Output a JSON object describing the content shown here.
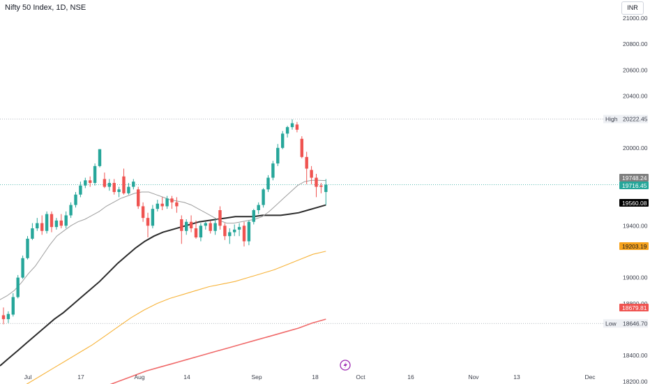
{
  "header": {
    "title": "Nifty 50 Index, 1D, NSE",
    "currency": "INR"
  },
  "colors": {
    "up": "#26a69a",
    "down": "#ef5350",
    "ma20": "#9e9e9e",
    "ma50": "#2b2b2b",
    "ma100": "#f7b339",
    "ma200": "#f06a6a",
    "marker": "#9c27b0"
  },
  "chart_data": {
    "type": "candlestick",
    "y_ticks": [
      "21000.00",
      "20800.00",
      "20600.00",
      "20400.00",
      "20000.00",
      "19400.00",
      "19000.00",
      "18800.00",
      "18400.00",
      "18200.00"
    ],
    "x_ticks": [
      "Jul",
      "17",
      "Aug",
      "14",
      "Sep",
      "18",
      "Oct",
      "16",
      "Nov",
      "13",
      "Dec"
    ],
    "ylim": [
      18180,
      21140
    ],
    "high": {
      "label": "High",
      "value": "20222.45"
    },
    "low": {
      "label": "Low",
      "value": "18646.70"
    },
    "price_tags": [
      {
        "value": "19748.24",
        "color": "#7f7f7f"
      },
      {
        "value": "19716.45",
        "color": "#26a69a"
      },
      {
        "value": "19560.08",
        "color": "#000000"
      },
      {
        "value": "19203.19",
        "color": "#f7a21b"
      },
      {
        "value": "18679.81",
        "color": "#ef5350"
      }
    ],
    "candles": [
      [
        18710,
        18770,
        18640,
        18680
      ],
      [
        18680,
        18740,
        18650,
        18720
      ],
      [
        18715,
        18880,
        18700,
        18850
      ],
      [
        18850,
        19020,
        18840,
        19000
      ],
      [
        19000,
        19170,
        18990,
        19150
      ],
      [
        19150,
        19320,
        19140,
        19300
      ],
      [
        19300,
        19420,
        19290,
        19380
      ],
      [
        19380,
        19460,
        19360,
        19420
      ],
      [
        19420,
        19480,
        19330,
        19360
      ],
      [
        19360,
        19510,
        19340,
        19490
      ],
      [
        19490,
        19510,
        19350,
        19390
      ],
      [
        19390,
        19460,
        19370,
        19440
      ],
      [
        19440,
        19490,
        19380,
        19400
      ],
      [
        19400,
        19510,
        19380,
        19480
      ],
      [
        19480,
        19580,
        19460,
        19560
      ],
      [
        19560,
        19660,
        19540,
        19640
      ],
      [
        19640,
        19740,
        19620,
        19710
      ],
      [
        19710,
        19770,
        19690,
        19750
      ],
      [
        19750,
        19780,
        19700,
        19730
      ],
      [
        19730,
        19880,
        19710,
        19860
      ],
      [
        19860,
        19990,
        19850,
        19990
      ],
      [
        19760,
        19810,
        19690,
        19700
      ],
      [
        19700,
        19760,
        19670,
        19730
      ],
      [
        19730,
        19760,
        19640,
        19660
      ],
      [
        19660,
        19700,
        19620,
        19680
      ],
      [
        19780,
        19840,
        19640,
        19650
      ],
      [
        19650,
        19730,
        19640,
        19700
      ],
      [
        19700,
        19760,
        19680,
        19740
      ],
      [
        19680,
        19700,
        19530,
        19550
      ],
      [
        19550,
        19580,
        19430,
        19460
      ],
      [
        19460,
        19500,
        19310,
        19400
      ],
      [
        19400,
        19560,
        19380,
        19530
      ],
      [
        19530,
        19600,
        19510,
        19570
      ],
      [
        19570,
        19620,
        19520,
        19550
      ],
      [
        19550,
        19630,
        19530,
        19610
      ],
      [
        19610,
        19630,
        19530,
        19580
      ],
      [
        19580,
        19620,
        19500,
        19550
      ],
      [
        19450,
        19480,
        19260,
        19360
      ],
      [
        19360,
        19450,
        19330,
        19430
      ],
      [
        19430,
        19480,
        19350,
        19380
      ],
      [
        19380,
        19440,
        19300,
        19310
      ],
      [
        19310,
        19420,
        19280,
        19400
      ],
      [
        19400,
        19430,
        19370,
        19420
      ],
      [
        19420,
        19440,
        19340,
        19360
      ],
      [
        19360,
        19450,
        19330,
        19420
      ],
      [
        19520,
        19550,
        19370,
        19400
      ],
      [
        19400,
        19420,
        19290,
        19320
      ],
      [
        19320,
        19380,
        19260,
        19350
      ],
      [
        19350,
        19410,
        19320,
        19370
      ],
      [
        19370,
        19420,
        19320,
        19390
      ],
      [
        19400,
        19430,
        19240,
        19280
      ],
      [
        19280,
        19440,
        19250,
        19430
      ],
      [
        19430,
        19530,
        19410,
        19520
      ],
      [
        19520,
        19580,
        19490,
        19560
      ],
      [
        19560,
        19690,
        19540,
        19680
      ],
      [
        19680,
        19790,
        19660,
        19770
      ],
      [
        19770,
        19900,
        19750,
        19880
      ],
      [
        19880,
        20030,
        19860,
        20000
      ],
      [
        20000,
        20130,
        19990,
        20110
      ],
      [
        20110,
        20170,
        20080,
        20160
      ],
      [
        20160,
        20220,
        20140,
        20190
      ],
      [
        20180,
        20200,
        20120,
        20140
      ],
      [
        20070,
        20090,
        19920,
        19930
      ],
      [
        19930,
        19970,
        19720,
        19840
      ],
      [
        19830,
        19860,
        19720,
        19770
      ],
      [
        19770,
        19800,
        19620,
        19700
      ],
      [
        19710,
        19730,
        19650,
        19700
      ],
      [
        19660,
        19760,
        19560,
        19716
      ]
    ],
    "ma20": [
      18830,
      18860,
      18900,
      18960,
      19030,
      19090,
      19170,
      19250,
      19320,
      19360,
      19400,
      19430,
      19450,
      19480,
      19510,
      19550,
      19580,
      19610,
      19630,
      19650,
      19660,
      19660,
      19640,
      19620,
      19600,
      19590,
      19580,
      19560,
      19530,
      19500,
      19470,
      19440,
      19420,
      19420,
      19430,
      19440,
      19450,
      19470,
      19510,
      19560,
      19610,
      19660,
      19710,
      19740,
      19750,
      19750,
      19748
    ],
    "ma50": [
      18320,
      18380,
      18440,
      18500,
      18560,
      18620,
      18680,
      18730,
      18790,
      18850,
      18910,
      18970,
      19040,
      19110,
      19170,
      19230,
      19280,
      19320,
      19350,
      19370,
      19390,
      19410,
      19430,
      19440,
      19450,
      19460,
      19470,
      19470,
      19470,
      19480,
      19480,
      19480,
      19490,
      19500,
      19520,
      19540,
      19560
    ],
    "ma100": [
      18120,
      18180,
      18240,
      18300,
      18360,
      18420,
      18480,
      18550,
      18620,
      18690,
      18750,
      18800,
      18840,
      18870,
      18900,
      18930,
      18950,
      18970,
      19000,
      19030,
      19060,
      19100,
      19140,
      19180,
      19203
    ],
    "ma200": [
      18160,
      18200,
      18240,
      18280,
      18310,
      18340,
      18370,
      18400,
      18430,
      18460,
      18490,
      18520,
      18550,
      18580,
      18610,
      18650,
      18680
    ]
  }
}
